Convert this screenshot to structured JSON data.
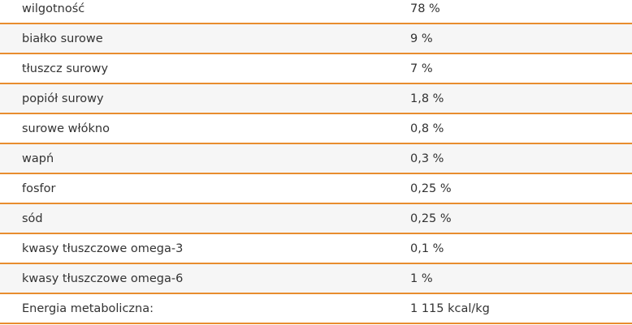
{
  "table": {
    "rows": [
      [
        "wilgotność",
        "78 %"
      ],
      [
        "białko surowe",
        "9 %"
      ],
      [
        "tłuszcz surowy",
        "7 %"
      ],
      [
        "popiół surowy",
        "1,8 %"
      ],
      [
        "surowe włókno",
        "0,8 %"
      ],
      [
        "wapń",
        "0,3 %"
      ],
      [
        "fosfor",
        "0,25 %"
      ],
      [
        "sód",
        "0,25 %"
      ],
      [
        "kwasy tłuszczowe omega-3",
        "0,1 %"
      ],
      [
        "kwasy tłuszczowe omega-6",
        "1 %"
      ],
      [
        "Energia metaboliczna:",
        "1 115 kcal/kg"
      ]
    ]
  }
}
